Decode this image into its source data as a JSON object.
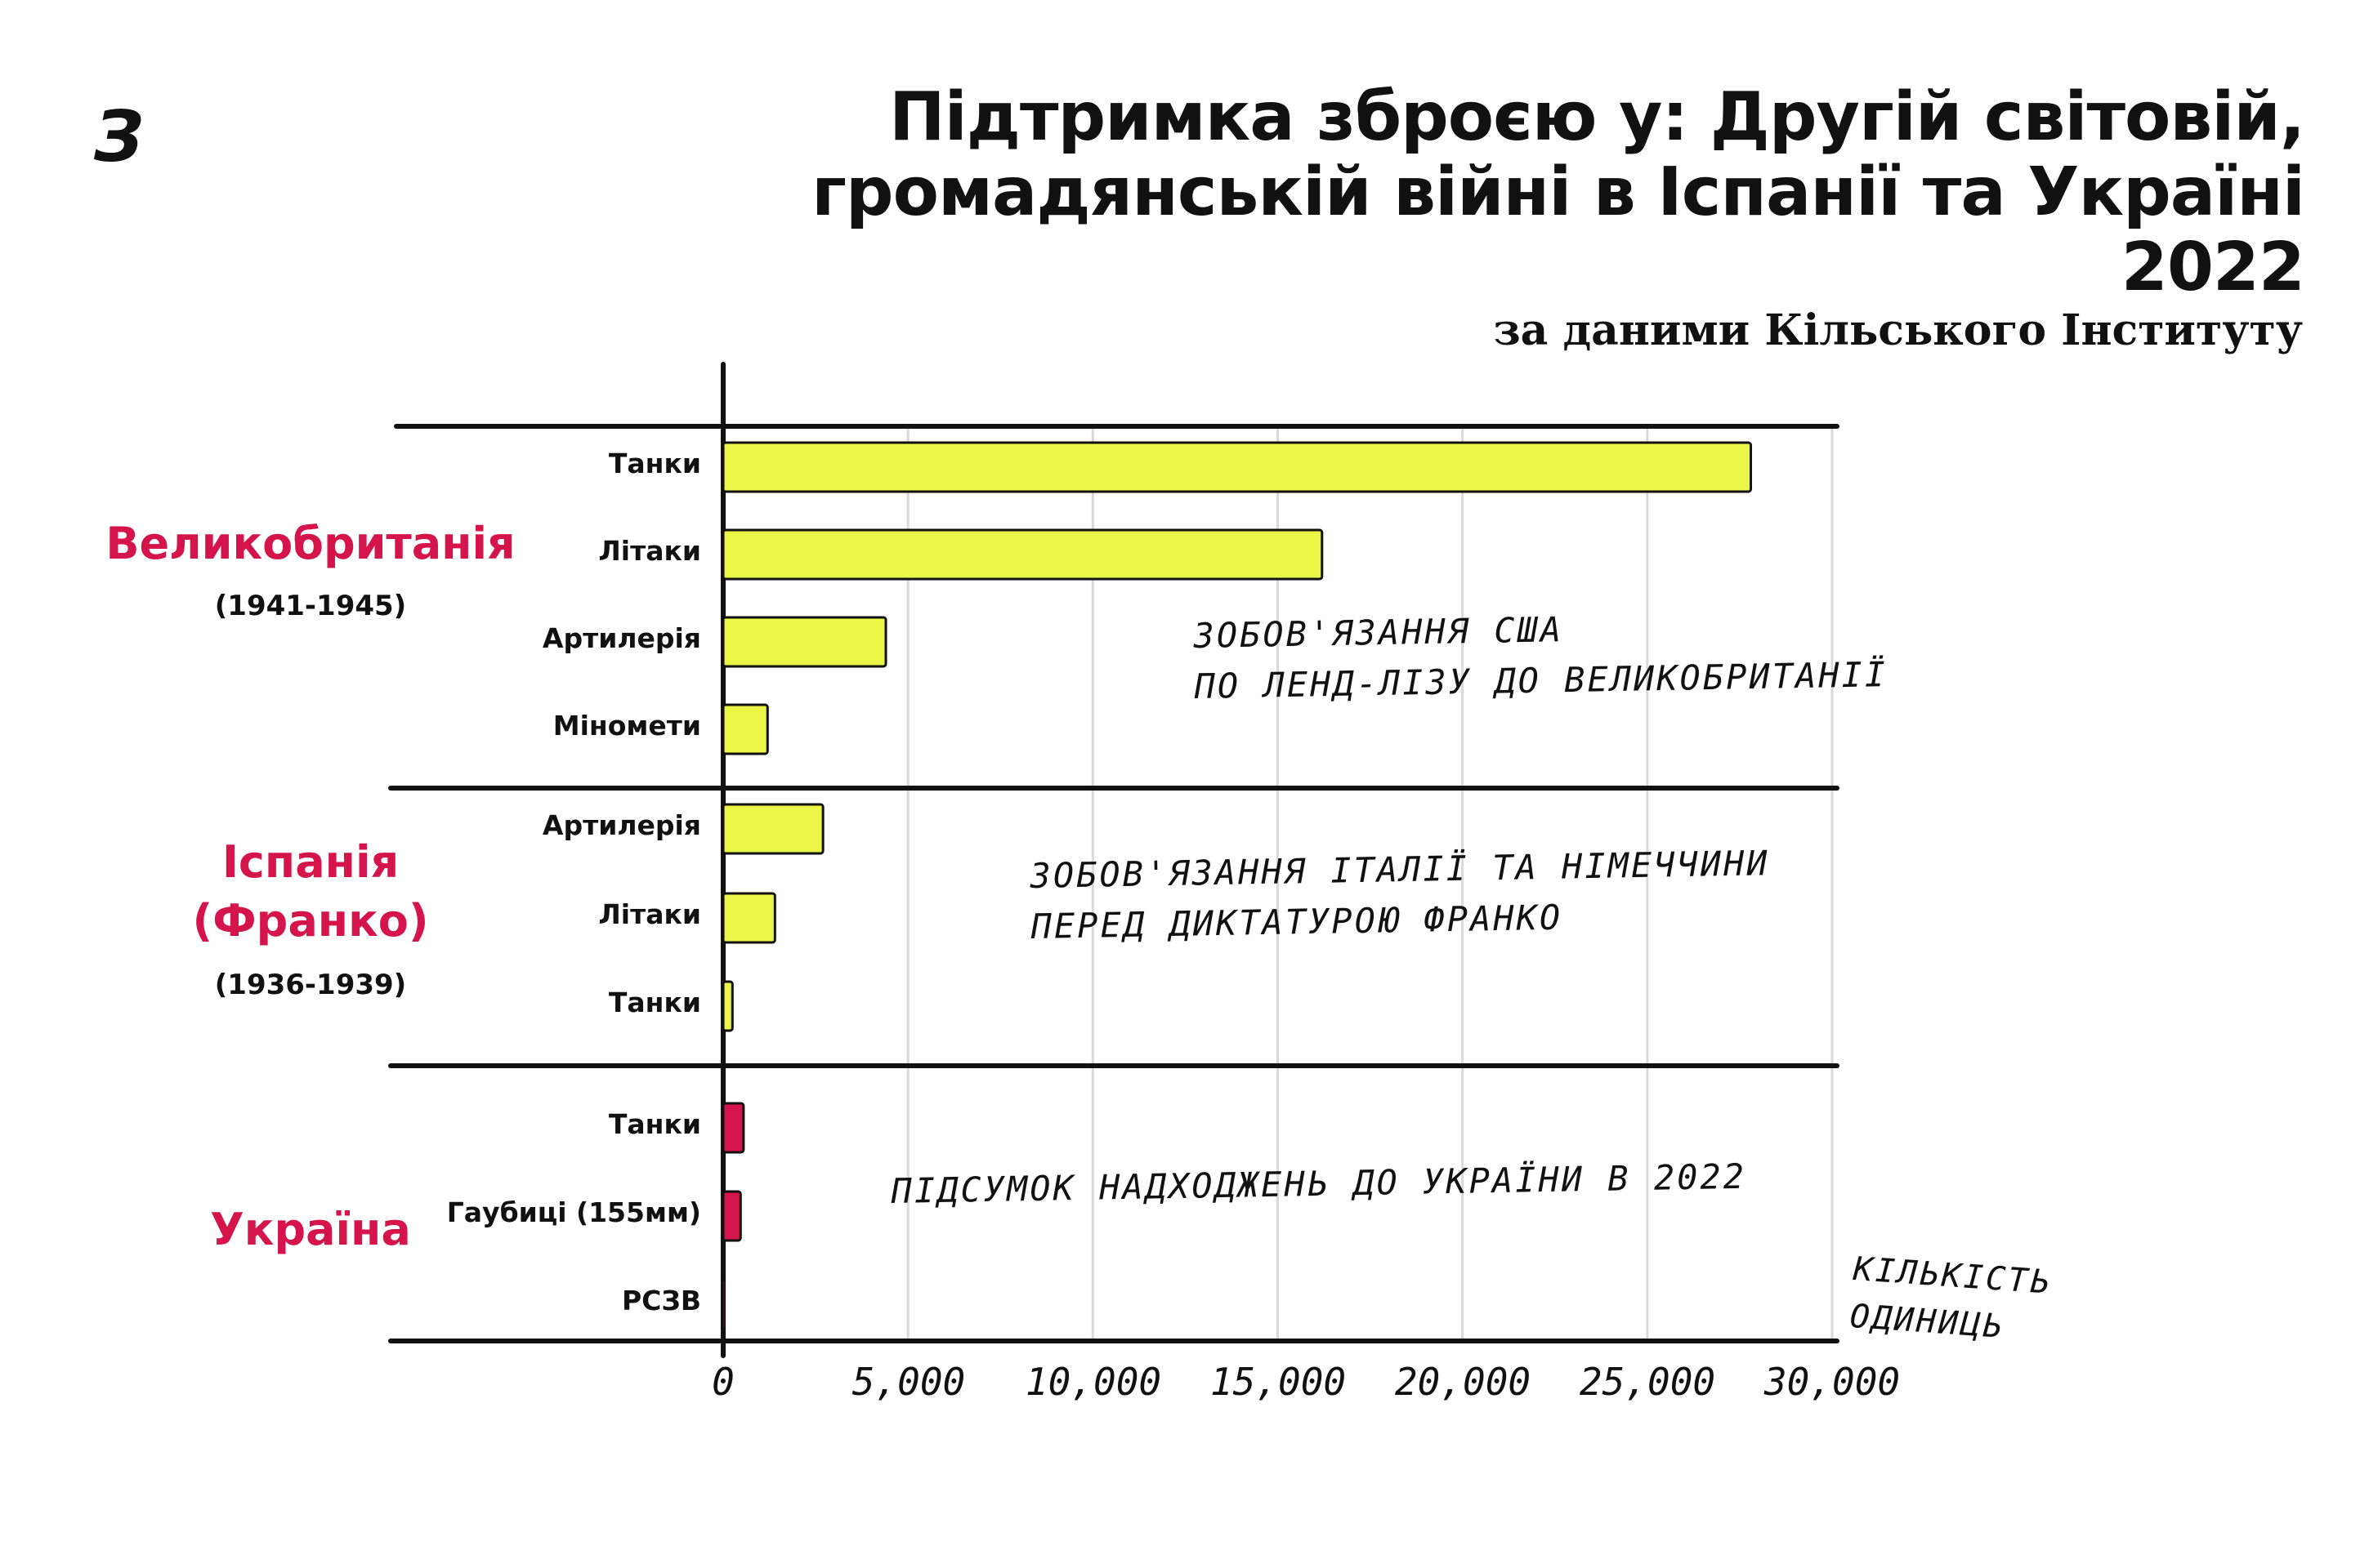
{
  "brand": {
    "logo_text": "З"
  },
  "header": {
    "title": "Підтримка зброєю у: Другій світовій, громадянській війні в Іспанії та Україні 2022",
    "subtitle": "за даними Кільського Інституту"
  },
  "colors": {
    "yellow_bar": "#eaf545",
    "red_bar": "#d4144a",
    "accent": "#d4144a"
  },
  "groups": [
    {
      "label_lines": [
        "Великобританія"
      ],
      "period": "(1941-1945)"
    },
    {
      "label_lines": [
        "Іспанія",
        "(Франко)"
      ],
      "period": "(1936-1939)"
    },
    {
      "label_lines": [
        "Україна"
      ],
      "period": ""
    }
  ],
  "notes": [
    {
      "lines": [
        "ЗОБОВ'ЯЗАННЯ США",
        "ПО ЛЕНД-ЛІЗУ ДО ВЕЛИКОБРИТАНІЇ"
      ]
    },
    {
      "lines": [
        "ЗОБОВ'ЯЗАННЯ ІТАЛІЇ ТА НІМЕЧЧИНИ",
        "ПЕРЕД ДИКТАТУРОЮ ФРАНКО"
      ]
    },
    {
      "lines": [
        "ПІДСУМОК НАДХОДЖЕНЬ ДО УКРАЇНИ В 2022"
      ]
    }
  ],
  "chart_data": {
    "type": "bar",
    "orientation": "horizontal",
    "title": "Підтримка зброєю у: Другій світовій, громадянській війні в Іспанії та Україні 2022",
    "subtitle": "за даними Кільського Інституту",
    "xlabel_lines": [
      "КІЛЬКІСТЬ",
      "ОДИНИЦЬ"
    ],
    "xlim": [
      0,
      30000
    ],
    "xticks": [
      "0",
      "5,000",
      "10,000",
      "15,000",
      "20,000",
      "25,000",
      "30,000"
    ],
    "grid": true,
    "bars": [
      {
        "group": "Великобританія",
        "category": "Танки",
        "value": 27800,
        "color": "#eaf545"
      },
      {
        "group": "Великобританія",
        "category": "Літаки",
        "value": 16200,
        "color": "#eaf545"
      },
      {
        "group": "Великобританія",
        "category": "Артилерія",
        "value": 4400,
        "color": "#eaf545"
      },
      {
        "group": "Великобританія",
        "category": "Міномети",
        "value": 1200,
        "color": "#eaf545"
      },
      {
        "group": "Іспанія (Франко)",
        "category": "Артилерія",
        "value": 2700,
        "color": "#eaf545"
      },
      {
        "group": "Іспанія (Франко)",
        "category": "Літаки",
        "value": 1400,
        "color": "#eaf545"
      },
      {
        "group": "Іспанія (Франко)",
        "category": "Танки",
        "value": 250,
        "color": "#eaf545"
      },
      {
        "group": "Україна",
        "category": "Танки",
        "value": 550,
        "color": "#d4144a"
      },
      {
        "group": "Україна",
        "category": "Гаубиці (155мм)",
        "value": 470,
        "color": "#d4144a"
      },
      {
        "group": "Україна",
        "category": "РСЗВ",
        "value": 40,
        "color": "#d4144a"
      }
    ]
  }
}
